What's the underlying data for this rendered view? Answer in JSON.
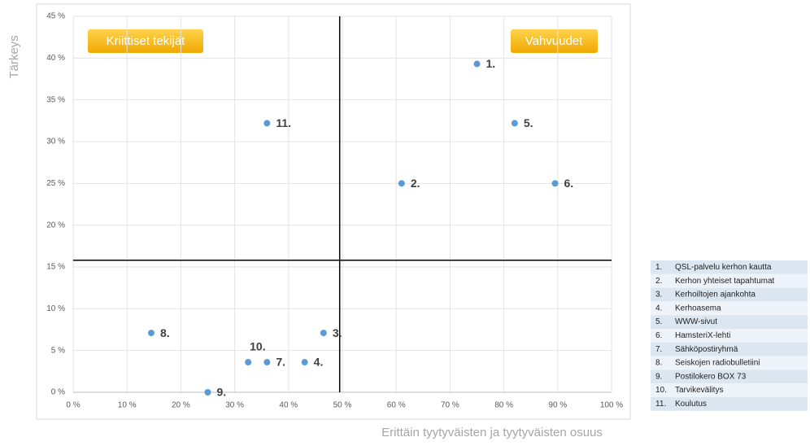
{
  "chart_data": {
    "type": "scatter",
    "y_label": "Tärkeys",
    "x_label": "Erittäin tyytyväisten ja tyytyväisten osuus",
    "annotations": [
      "Kriittiset tekijät",
      "Vahvuudet"
    ],
    "xlim": [
      0,
      100
    ],
    "xticks": [
      {
        "value": 0,
        "label": "0 %"
      },
      {
        "value": 10,
        "label": "10 %"
      },
      {
        "value": 20,
        "label": "20 %"
      },
      {
        "value": 30,
        "label": "30 %"
      },
      {
        "value": 40,
        "label": "40 %"
      },
      {
        "value": 50,
        "label": "50 %"
      },
      {
        "value": 60,
        "label": "60 %"
      },
      {
        "value": 70,
        "label": "70 %"
      },
      {
        "value": 80,
        "label": "80 %"
      },
      {
        "value": 90,
        "label": "90 %"
      },
      {
        "value": 100,
        "label": "100 %"
      }
    ],
    "ylim": [
      0,
      45
    ],
    "yticks": [
      {
        "value": 0,
        "label": "0 %"
      },
      {
        "value": 5,
        "label": "5 %"
      },
      {
        "value": 10,
        "label": "10 %"
      },
      {
        "value": 15,
        "label": "15 %"
      },
      {
        "value": 20,
        "label": "20 %"
      },
      {
        "value": 25,
        "label": "25 %"
      },
      {
        "value": 30,
        "label": "30 %"
      },
      {
        "value": 35,
        "label": "35 %"
      },
      {
        "value": 40,
        "label": "40 %"
      },
      {
        "value": 45,
        "label": "45 %"
      }
    ],
    "grid": true,
    "x_divider": 49.5,
    "y_divider": 15.8,
    "series": [
      {
        "color": "#5b9bd5",
        "x": [
          75,
          61,
          46.5,
          43,
          82,
          89.5,
          36,
          14.5,
          25,
          32.5,
          36
        ],
        "values": [
          39.3,
          25,
          7.1,
          3.6,
          32.2,
          25,
          3.6,
          7.1,
          0,
          3.6,
          32.2
        ],
        "point_labels": [
          "1.",
          "2.",
          "3.",
          "4.",
          "5.",
          "6.",
          "7.",
          "8.",
          "9.",
          "10.",
          "11."
        ]
      }
    ],
    "legend": [
      {
        "number": "1.",
        "text": "QSL-palvelu kerhon kautta"
      },
      {
        "number": "2.",
        "text": "Kerhon yhteiset tapahtumat"
      },
      {
        "number": "3.",
        "text": "Kerhoiltojen ajankohta"
      },
      {
        "number": "4.",
        "text": "Kerhoasema"
      },
      {
        "number": "5.",
        "text": "WWW-sivut"
      },
      {
        "number": "6.",
        "text": "HamsteriX-lehti"
      },
      {
        "number": "7.",
        "text": "Sähköpostiryhmä"
      },
      {
        "number": "8.",
        "text": "Seiskojen radiobulletiini"
      },
      {
        "number": "9.",
        "text": "Postilokero BOX 73"
      },
      {
        "number": "10.",
        "text": "Tarvikevälitys"
      },
      {
        "number": "11.",
        "text": "Koulutus"
      }
    ]
  }
}
